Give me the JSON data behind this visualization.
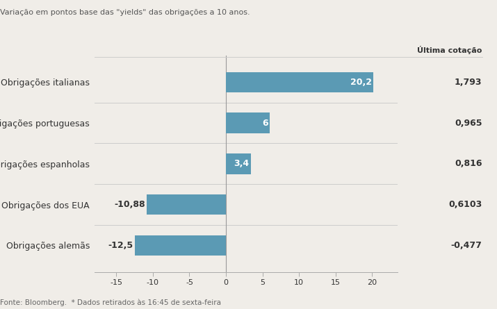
{
  "subtitle": "Variação em pontos base das \"yields\" das obrigações a 10 anos.",
  "col_header": "Última cotação",
  "categories": [
    "Obrigações italianas",
    "Obrigações portuguesas",
    "Obrigações espanholas",
    "Obrigações dos EUA",
    "Obrigações alemãs"
  ],
  "values": [
    20.2,
    6.0,
    3.4,
    -10.88,
    -12.5
  ],
  "bar_labels": [
    "20,2",
    "6",
    "3,4",
    "-10,88",
    "-12,5"
  ],
  "last_quotes": [
    "1,793",
    "0,965",
    "0,816",
    "0,6103",
    "-0,477"
  ],
  "bar_color": "#5b9ab4",
  "xlim": [
    -18,
    23.5
  ],
  "xticks": [
    -15,
    -10,
    -5,
    0,
    5,
    10,
    15,
    20
  ],
  "footnote": "Fonte: Bloomberg.  * Dados retirados às 16:45 de sexta-feira",
  "bg_color": "#f0ede8",
  "text_color": "#333333",
  "separator_color": "#cccccc",
  "axis_color": "#aaaaaa"
}
